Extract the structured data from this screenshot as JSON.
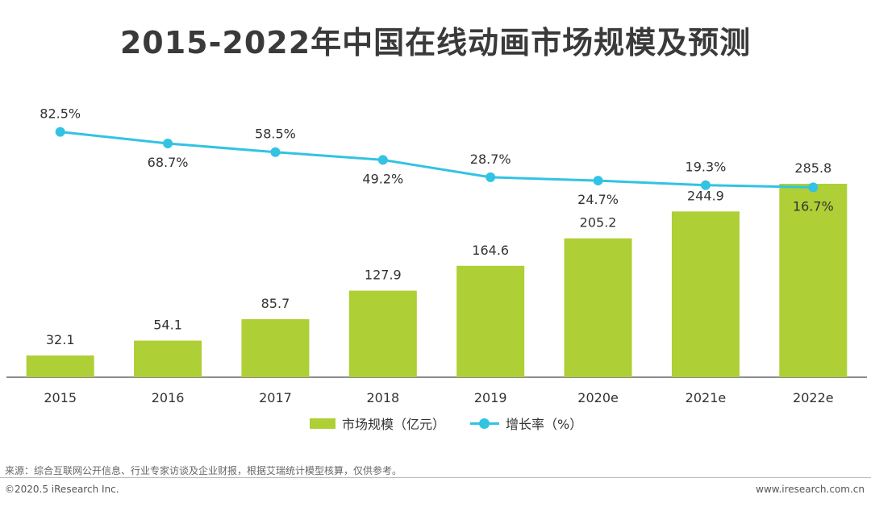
{
  "chart_data": {
    "type": "bar",
    "title": "2015-2022年中国在线动画市场规模及预测",
    "categories": [
      "2015",
      "2016",
      "2017",
      "2018",
      "2019",
      "2020e",
      "2021e",
      "2022e"
    ],
    "series": [
      {
        "name": "市场规模（亿元）",
        "type": "bar",
        "values": [
          32.1,
          54.1,
          85.7,
          127.9,
          164.6,
          205.2,
          244.9,
          285.8
        ],
        "labels": [
          "32.1",
          "54.1",
          "85.7",
          "127.9",
          "164.6",
          "205.2",
          "244.9",
          "285.8"
        ]
      },
      {
        "name": "增长率（%）",
        "type": "line",
        "values": [
          82.5,
          68.7,
          58.5,
          49.2,
          28.7,
          24.7,
          19.3,
          16.7
        ],
        "labels": [
          "82.5%",
          "68.7%",
          "58.5%",
          "49.2%",
          "28.7%",
          "24.7%",
          "19.3%",
          "16.7%"
        ]
      }
    ],
    "legend_position": "bottom",
    "grid": false,
    "colors": {
      "bar": "#aecf35",
      "line": "#33c3e2",
      "axis": "#666666",
      "text": "#333333"
    }
  },
  "footer": {
    "source": "来源：综合互联网公开信息、行业专家访谈及企业财报，根据艾瑞统计模型核算，仅供参考。",
    "copyright": "©2020.5 iResearch Inc.",
    "website": "www.iresearch.com.cn"
  }
}
